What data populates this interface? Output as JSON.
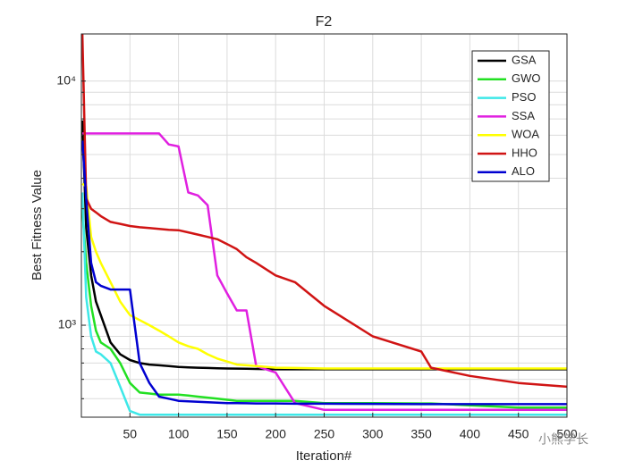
{
  "chart_data": {
    "type": "line",
    "title": "F2",
    "x_label": "Iteration#",
    "y_label": "Best Fitness Value",
    "yscale": "log",
    "grid": true,
    "legend": "upper right",
    "x": [
      1,
      5,
      10,
      15,
      20,
      30,
      40,
      50,
      60,
      70,
      80,
      90,
      100,
      110,
      120,
      130,
      140,
      150,
      160,
      170,
      180,
      200,
      220,
      250,
      300,
      350,
      360,
      400,
      450,
      500
    ],
    "xlim": [
      0,
      500
    ],
    "xticks": [
      50,
      100,
      150,
      200,
      250,
      300,
      350,
      400,
      450,
      500
    ],
    "ylim": [
      420,
      15600
    ],
    "yticks": [
      {
        "value": 1000,
        "label": "10³"
      },
      {
        "value": 10000,
        "label": "10⁴"
      }
    ],
    "yminor": [
      500,
      600,
      700,
      800,
      900,
      2000,
      3000,
      4000,
      5000,
      6000,
      7000,
      8000,
      9000
    ],
    "series": [
      {
        "name": "GSA",
        "color": "#000000",
        "values": [
          6900,
          2500,
          1600,
          1250,
          1100,
          850,
          760,
          720,
          700,
          690,
          685,
          680,
          675,
          672,
          670,
          668,
          666,
          665,
          664,
          663,
          662,
          660,
          660,
          660,
          660,
          660,
          660,
          660,
          660,
          660
        ]
      },
      {
        "name": "GWO",
        "color": "#22e022",
        "values": [
          3000,
          1800,
          1200,
          950,
          850,
          800,
          700,
          580,
          530,
          525,
          520,
          520,
          520,
          515,
          510,
          505,
          500,
          495,
          490,
          490,
          490,
          490,
          490,
          480,
          480,
          478,
          478,
          470,
          460,
          460
        ]
      },
      {
        "name": "PSO",
        "color": "#3ee8e8",
        "values": [
          3500,
          1300,
          900,
          780,
          760,
          700,
          560,
          445,
          430,
          430,
          430,
          430,
          430,
          430,
          430,
          430,
          430,
          430,
          430,
          430,
          430,
          430,
          430,
          430,
          430,
          430,
          430,
          430,
          430,
          430
        ]
      },
      {
        "name": "SSA",
        "color": "#e020e0",
        "values": [
          6100,
          6100,
          6100,
          6100,
          6100,
          6100,
          6100,
          6100,
          6100,
          6100,
          6100,
          5500,
          5400,
          3500,
          3400,
          3100,
          1600,
          1350,
          1150,
          1150,
          680,
          640,
          480,
          450,
          450,
          450,
          450,
          450,
          450,
          450
        ]
      },
      {
        "name": "WOA",
        "color": "#ffff00",
        "values": [
          3800,
          3700,
          2300,
          2000,
          1800,
          1500,
          1250,
          1100,
          1050,
          1000,
          950,
          900,
          850,
          820,
          800,
          760,
          730,
          710,
          690,
          685,
          680,
          670,
          668,
          665,
          665,
          665,
          665,
          665,
          665,
          665
        ]
      },
      {
        "name": "HHO",
        "color": "#d01414",
        "values": [
          15600,
          3300,
          3000,
          2900,
          2800,
          2650,
          2600,
          2550,
          2520,
          2500,
          2480,
          2460,
          2450,
          2400,
          2350,
          2300,
          2250,
          2150,
          2050,
          1900,
          1800,
          1600,
          1500,
          1200,
          900,
          780,
          670,
          620,
          580,
          560
        ]
      },
      {
        "name": "ALO",
        "color": "#0000d0",
        "values": [
          5700,
          3300,
          1800,
          1500,
          1450,
          1400,
          1400,
          1400,
          700,
          580,
          510,
          500,
          490,
          488,
          486,
          484,
          482,
          480,
          480,
          479,
          478,
          478,
          477,
          477,
          476,
          475,
          475,
          475,
          475,
          475
        ]
      }
    ],
    "watermark": "小熊学长"
  }
}
